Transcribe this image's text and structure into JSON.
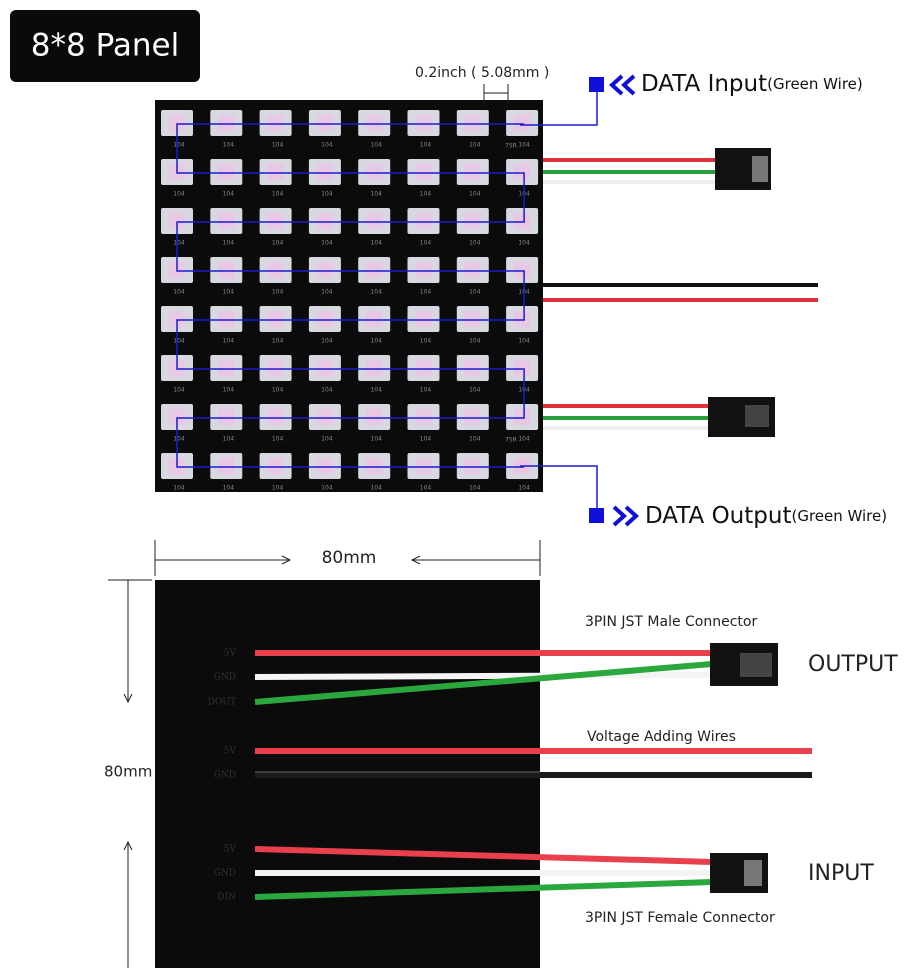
{
  "title": "8*8 Panel",
  "top_view": {
    "pitch_label": "0.2inch ( 5.08mm )",
    "data_input": {
      "label": "DATA Input",
      "note": "(Green Wire)"
    },
    "data_output": {
      "label": "DATA Output",
      "note": "(Green Wire)"
    },
    "chip_label": "104",
    "resistor_label": "75R"
  },
  "bottom_view": {
    "width_label": "80mm",
    "height_label": "80mm",
    "output_group": {
      "connector": "3PIN JST Male Connector",
      "label": "OUTPUT",
      "pins": [
        "5V",
        "GND",
        "DOUT"
      ]
    },
    "power_group": {
      "label": "Voltage Adding Wires",
      "pins": [
        "5V",
        "GND"
      ]
    },
    "input_group": {
      "connector": "3PIN JST Female Connector",
      "label": "INPUT",
      "pins": [
        "5V",
        "GND",
        "DIN"
      ]
    }
  }
}
